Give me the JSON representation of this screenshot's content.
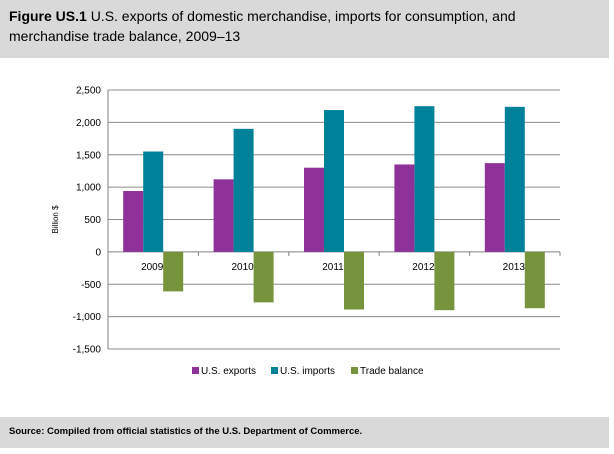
{
  "figure": {
    "label": "Figure US.1",
    "title": "U.S. exports of domestic merchandise, imports for consumption, and merchandise trade balance, 2009–13",
    "source": "Source: Compiled from official statistics of the U.S. Department of Commerce."
  },
  "chart_data": {
    "type": "bar",
    "categories": [
      "2009",
      "2010",
      "2011",
      "2012",
      "2013"
    ],
    "series": [
      {
        "name": "U.S. exports",
        "color": "#8e3198",
        "values": [
          940,
          1120,
          1300,
          1350,
          1370
        ]
      },
      {
        "name": "U.S. imports",
        "color": "#00819a",
        "values": [
          1550,
          1900,
          2190,
          2250,
          2240
        ]
      },
      {
        "name": "Trade balance",
        "color": "#77933c",
        "values": [
          -610,
          -780,
          -890,
          -900,
          -870
        ]
      }
    ],
    "ylabel": "Billion $",
    "ylim": [
      -1500,
      2500
    ],
    "yticks": [
      2500,
      2000,
      1500,
      1000,
      500,
      0,
      -500,
      -1000,
      -1500
    ],
    "ytick_labels": [
      "2,500",
      "2,000",
      "1,500",
      "1,000",
      "500",
      "0",
      "-500",
      "-1,000",
      "-1,500"
    ],
    "grid": true,
    "legend_position": "bottom"
  }
}
